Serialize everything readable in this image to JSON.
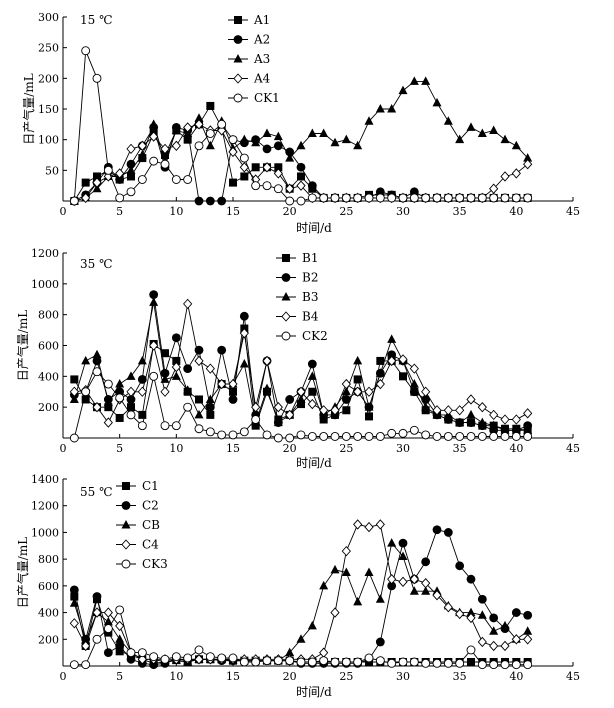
{
  "chart_data": [
    {
      "type": "line",
      "title": "15 ℃",
      "xlabel": "时间/d",
      "ylabel": "日产气量/mL",
      "xlim": [
        0,
        45
      ],
      "ylim": [
        0,
        300
      ],
      "xticks": [
        "0",
        "5",
        "10",
        "15",
        "20",
        "25",
        "30",
        "35",
        "40",
        "45"
      ],
      "yticks": [
        "50",
        "100",
        "150",
        "200",
        "250",
        "300"
      ],
      "x": [
        1,
        2,
        3,
        4,
        5,
        6,
        7,
        8,
        9,
        10,
        11,
        12,
        13,
        14,
        15,
        16,
        17,
        18,
        19,
        20,
        21,
        22,
        23,
        24,
        25,
        26,
        27,
        28,
        29,
        30,
        31,
        32,
        33,
        34,
        35,
        36,
        37,
        38,
        39,
        40,
        41
      ],
      "series": [
        {
          "name": "A1",
          "marker": "square",
          "values": [
            0,
            30,
            40,
            50,
            35,
            40,
            70,
            110,
            75,
            115,
            100,
            125,
            155,
            120,
            30,
            40,
            55,
            55,
            55,
            20,
            40,
            20,
            5,
            5,
            5,
            5,
            10,
            10,
            10,
            5,
            5,
            5,
            5,
            5,
            5,
            5,
            5,
            5,
            5,
            5,
            5
          ]
        },
        {
          "name": "A2",
          "marker": "circle",
          "values": [
            0,
            10,
            30,
            55,
            35,
            60,
            90,
            120,
            55,
            120,
            115,
            0,
            0,
            0,
            100,
            95,
            100,
            85,
            90,
            80,
            55,
            25,
            5,
            5,
            5,
            5,
            5,
            15,
            10,
            5,
            15,
            5,
            5,
            5,
            5,
            5,
            5,
            5,
            5,
            5,
            5
          ]
        },
        {
          "name": "A3",
          "marker": "triangle",
          "values": [
            0,
            5,
            20,
            40,
            40,
            50,
            75,
            125,
            65,
            115,
            110,
            135,
            90,
            130,
            85,
            100,
            95,
            110,
            105,
            70,
            90,
            110,
            110,
            95,
            100,
            90,
            130,
            150,
            150,
            180,
            195,
            195,
            160,
            130,
            100,
            120,
            110,
            115,
            100,
            90,
            70
          ]
        },
        {
          "name": "A4",
          "marker": "diamond",
          "values": [
            0,
            5,
            30,
            40,
            45,
            85,
            90,
            105,
            85,
            90,
            120,
            125,
            115,
            115,
            80,
            55,
            35,
            55,
            45,
            20,
            25,
            5,
            5,
            5,
            5,
            5,
            5,
            5,
            5,
            5,
            5,
            5,
            5,
            5,
            5,
            5,
            5,
            20,
            40,
            45,
            60
          ]
        },
        {
          "name": "CK1",
          "marker": "open-circle",
          "values": [
            0,
            245,
            200,
            50,
            5,
            15,
            35,
            65,
            60,
            35,
            35,
            90,
            110,
            125,
            100,
            70,
            25,
            25,
            20,
            0,
            0,
            5,
            5,
            5,
            5,
            5,
            5,
            5,
            5,
            5,
            5,
            5,
            5,
            5,
            5,
            5,
            5,
            5,
            5,
            5,
            5
          ]
        }
      ]
    },
    {
      "type": "line",
      "title": "35 ℃",
      "xlabel": "时间/d",
      "ylabel": "日产气量/mL",
      "xlim": [
        0,
        45
      ],
      "ylim": [
        0,
        1200
      ],
      "xticks": [
        "0",
        "5",
        "10",
        "15",
        "20",
        "25",
        "30",
        "35",
        "40",
        "45"
      ],
      "yticks": [
        "200",
        "400",
        "600",
        "800",
        "1000",
        "1200"
      ],
      "x": [
        1,
        2,
        3,
        4,
        5,
        6,
        7,
        8,
        9,
        10,
        11,
        12,
        13,
        14,
        15,
        16,
        17,
        18,
        19,
        20,
        21,
        22,
        23,
        24,
        25,
        26,
        27,
        28,
        29,
        30,
        31,
        32,
        33,
        34,
        35,
        36,
        37,
        38,
        39,
        40,
        41
      ],
      "series": [
        {
          "name": "B1",
          "marker": "square",
          "values": [
            380,
            250,
            200,
            200,
            130,
            200,
            150,
            610,
            550,
            500,
            300,
            250,
            150,
            350,
            300,
            710,
            80,
            300,
            120,
            150,
            220,
            300,
            120,
            150,
            180,
            380,
            140,
            500,
            500,
            400,
            300,
            180,
            150,
            120,
            100,
            100,
            80,
            80,
            60,
            60,
            50
          ]
        },
        {
          "name": "B2",
          "marker": "circle",
          "values": [
            280,
            300,
            500,
            250,
            300,
            250,
            380,
            930,
            420,
            650,
            450,
            570,
            200,
            570,
            250,
            790,
            150,
            500,
            100,
            250,
            300,
            480,
            150,
            150,
            250,
            300,
            200,
            420,
            540,
            500,
            300,
            250,
            150,
            120,
            100,
            100,
            80,
            50,
            50,
            50,
            80
          ]
        },
        {
          "name": "B3",
          "marker": "triangle",
          "values": [
            250,
            500,
            540,
            230,
            350,
            400,
            500,
            880,
            380,
            400,
            310,
            150,
            250,
            350,
            350,
            480,
            100,
            320,
            100,
            150,
            250,
            400,
            150,
            200,
            300,
            500,
            200,
            420,
            640,
            500,
            350,
            200,
            150,
            150,
            100,
            150,
            100,
            80,
            50,
            50,
            50
          ]
        },
        {
          "name": "B4",
          "marker": "diamond",
          "values": [
            300,
            310,
            200,
            100,
            250,
            300,
            300,
            600,
            300,
            460,
            870,
            500,
            450,
            350,
            350,
            680,
            200,
            500,
            200,
            150,
            300,
            220,
            180,
            180,
            350,
            300,
            300,
            350,
            500,
            510,
            450,
            300,
            180,
            180,
            180,
            250,
            200,
            150,
            120,
            120,
            160
          ]
        },
        {
          "name": "CK2",
          "marker": "open-circle",
          "values": [
            0,
            300,
            430,
            350,
            260,
            150,
            80,
            400,
            80,
            80,
            200,
            60,
            40,
            20,
            20,
            40,
            120,
            20,
            0,
            0,
            20,
            10,
            10,
            10,
            10,
            10,
            10,
            10,
            30,
            30,
            50,
            20,
            10,
            10,
            10,
            10,
            10,
            10,
            10,
            10,
            10
          ]
        }
      ]
    },
    {
      "type": "line",
      "title": "55 ℃",
      "xlabel": "时间/d",
      "ylabel": "日产气量/mL",
      "xlim": [
        0,
        45
      ],
      "ylim": [
        0,
        1400
      ],
      "xticks": [
        "0",
        "5",
        "10",
        "15",
        "20",
        "25",
        "30",
        "35",
        "40",
        "45"
      ],
      "yticks": [
        "200",
        "400",
        "600",
        "800",
        "1000",
        "1200",
        "1400"
      ],
      "x": [
        1,
        2,
        3,
        4,
        5,
        6,
        7,
        8,
        9,
        10,
        11,
        12,
        13,
        14,
        15,
        16,
        17,
        18,
        19,
        20,
        21,
        22,
        23,
        24,
        25,
        26,
        27,
        28,
        29,
        30,
        31,
        32,
        33,
        34,
        35,
        36,
        37,
        38,
        39,
        40,
        41
      ],
      "series": [
        {
          "name": "C1",
          "marker": "square",
          "values": [
            520,
            150,
            500,
            250,
            110,
            80,
            50,
            50,
            30,
            50,
            40,
            50,
            50,
            50,
            40,
            40,
            40,
            40,
            40,
            40,
            30,
            30,
            30,
            30,
            30,
            30,
            30,
            30,
            30,
            30,
            30,
            30,
            30,
            30,
            30,
            30,
            30,
            30,
            30,
            30,
            30
          ]
        },
        {
          "name": "C2",
          "marker": "circle",
          "values": [
            570,
            200,
            520,
            100,
            150,
            50,
            20,
            10,
            20,
            50,
            50,
            50,
            50,
            40,
            40,
            40,
            40,
            40,
            40,
            40,
            20,
            20,
            20,
            20,
            20,
            20,
            50,
            180,
            600,
            920,
            650,
            780,
            1020,
            1000,
            750,
            650,
            500,
            360,
            280,
            400,
            380
          ]
        },
        {
          "name": "CB",
          "marker": "triangle",
          "values": [
            470,
            190,
            400,
            330,
            200,
            100,
            50,
            20,
            30,
            40,
            30,
            50,
            50,
            50,
            40,
            40,
            40,
            40,
            40,
            100,
            200,
            300,
            600,
            720,
            700,
            480,
            700,
            500,
            920,
            820,
            560,
            560,
            560,
            450,
            400,
            400,
            380,
            260,
            300,
            200,
            260
          ]
        },
        {
          "name": "C4",
          "marker": "diamond",
          "values": [
            320,
            150,
            400,
            400,
            300,
            100,
            50,
            50,
            50,
            50,
            50,
            50,
            50,
            50,
            50,
            50,
            50,
            50,
            50,
            50,
            50,
            50,
            100,
            400,
            860,
            1060,
            1040,
            1060,
            650,
            630,
            650,
            620,
            530,
            440,
            390,
            360,
            180,
            150,
            150,
            200,
            200
          ]
        },
        {
          "name": "CK3",
          "marker": "open-circle",
          "values": [
            10,
            10,
            200,
            280,
            420,
            100,
            100,
            70,
            50,
            70,
            60,
            120,
            70,
            60,
            60,
            30,
            30,
            40,
            40,
            40,
            30,
            30,
            40,
            30,
            30,
            30,
            60,
            40,
            20,
            30,
            30,
            20,
            20,
            20,
            20,
            120,
            10,
            10,
            10,
            10,
            10
          ]
        }
      ]
    }
  ]
}
